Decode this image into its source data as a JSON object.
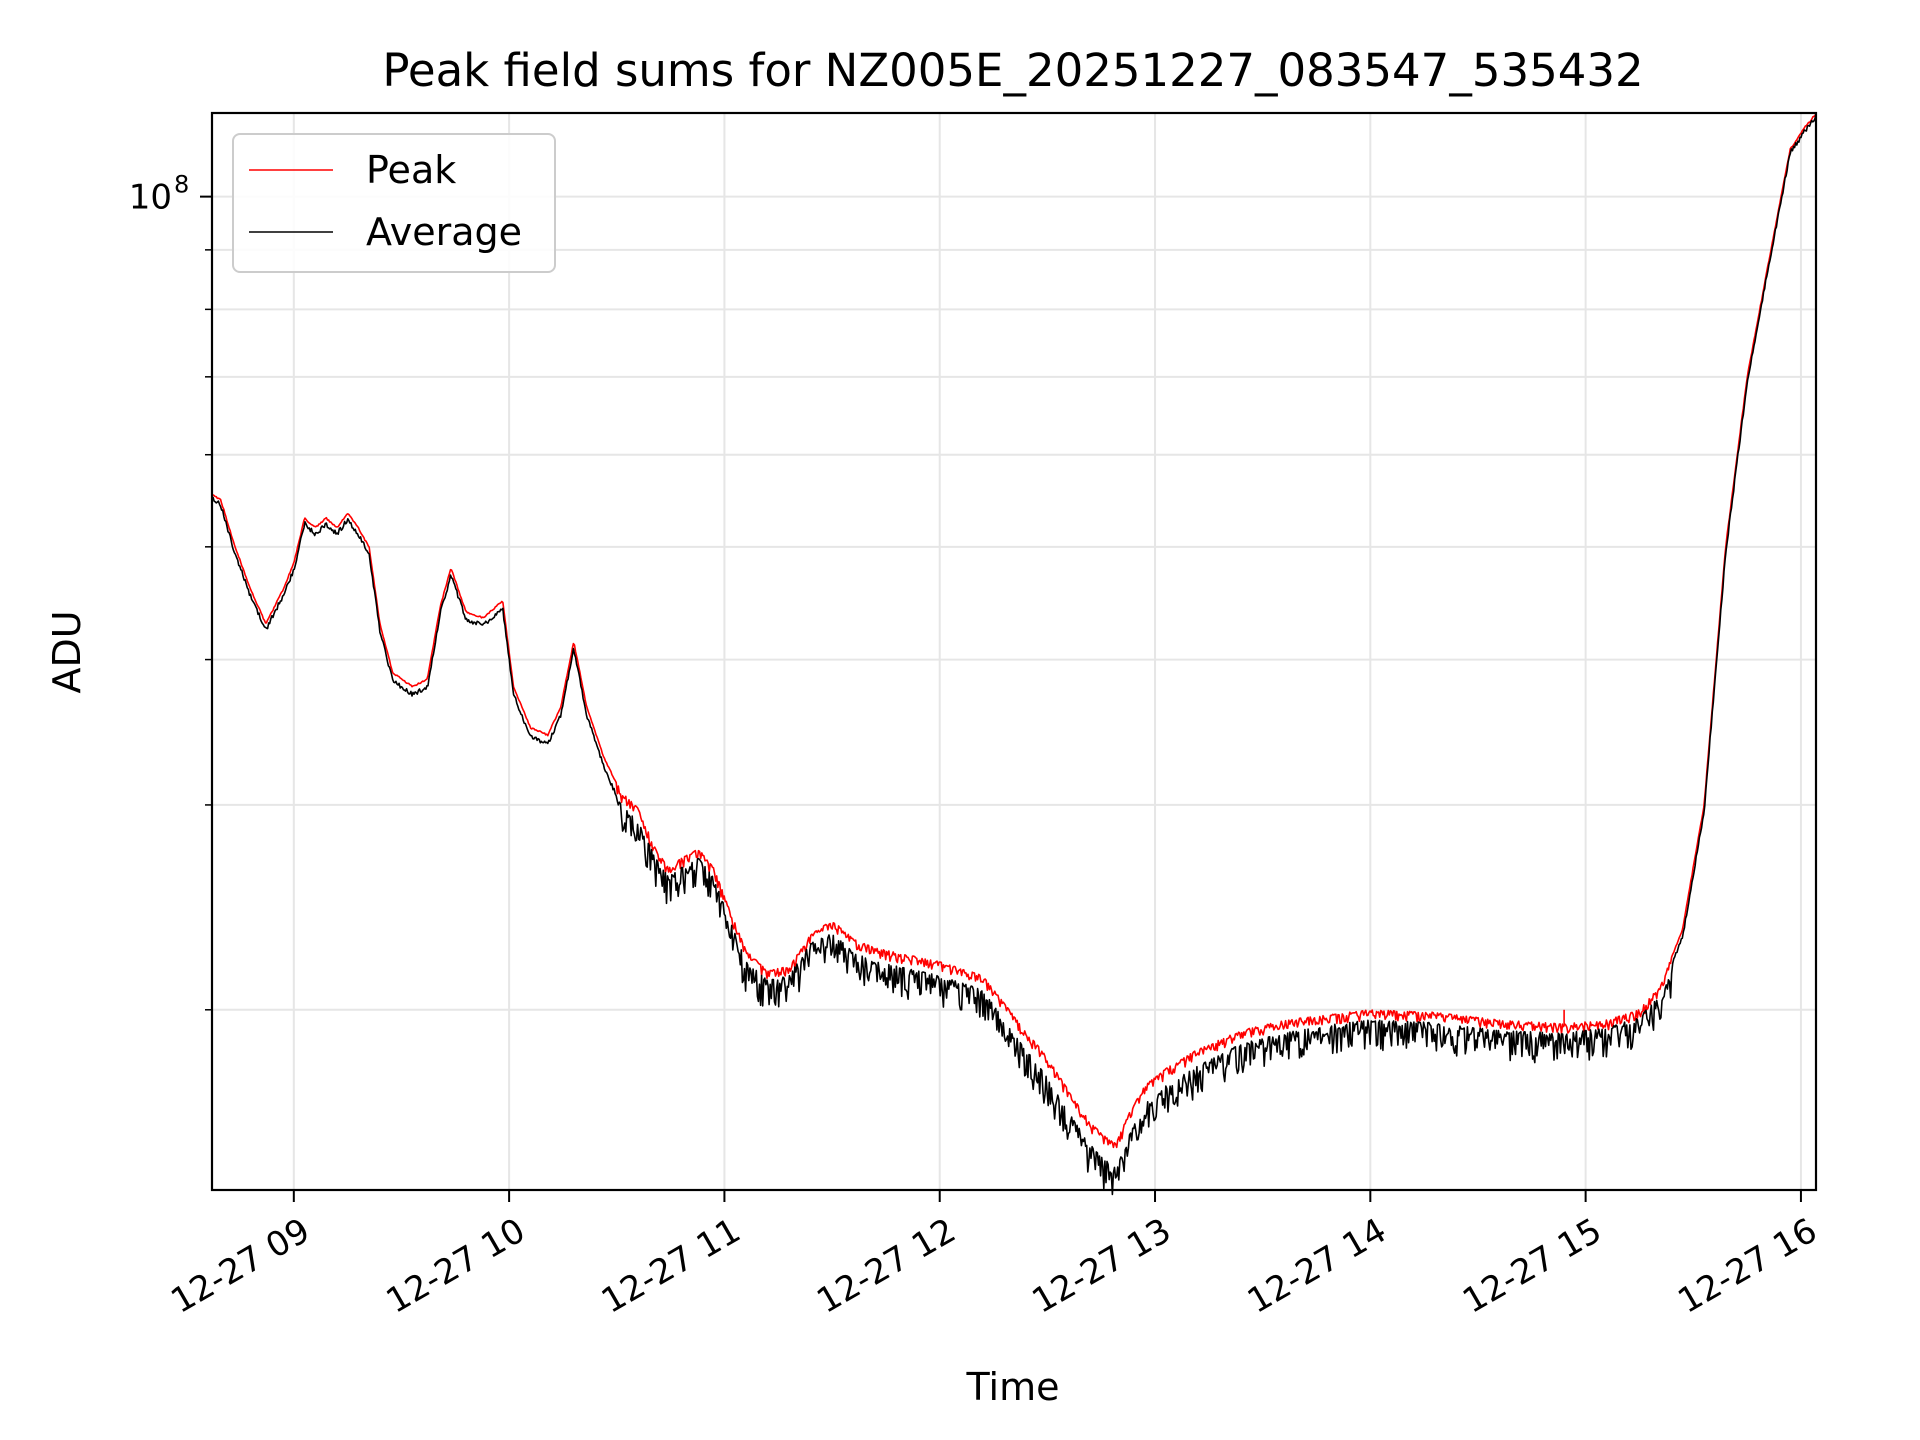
{
  "chart_data": {
    "type": "line",
    "title": "Peak field sums for NZ005E_20251227_083547_535432",
    "xlabel": "Time",
    "ylabel": "ADU",
    "x_ticks": [
      "12-27 09",
      "12-27 10",
      "12-27 11",
      "12-27 12",
      "12-27 13",
      "12-27 14",
      "12-27 15",
      "12-27 16"
    ],
    "x_range_hours": [
      8.62,
      16.07
    ],
    "y_scale": "log",
    "ylim": [
      14000000,
      118000000
    ],
    "y_major_ticks": [
      {
        "value": 100000000,
        "base": "10",
        "exponent": "8"
      }
    ],
    "y_minor_ticks": [
      20000000,
      30000000,
      40000000,
      50000000,
      60000000,
      70000000,
      80000000,
      90000000
    ],
    "grid": true,
    "legend": {
      "position": "upper left",
      "entries": [
        "Peak",
        "Average"
      ]
    },
    "series": [
      {
        "name": "Peak",
        "color": "#ff0000",
        "noise": 0.02,
        "spikes": [
          {
            "x": 14.9,
            "y": 20000000
          }
        ],
        "keypoints": [
          [
            8.62,
            55500000
          ],
          [
            8.66,
            55000000
          ],
          [
            8.72,
            50500000
          ],
          [
            8.8,
            46000000
          ],
          [
            8.87,
            43000000
          ],
          [
            8.95,
            46000000
          ],
          [
            9.0,
            48500000
          ],
          [
            9.05,
            53000000
          ],
          [
            9.1,
            52000000
          ],
          [
            9.15,
            53000000
          ],
          [
            9.2,
            52000000
          ],
          [
            9.25,
            53500000
          ],
          [
            9.3,
            52000000
          ],
          [
            9.35,
            50000000
          ],
          [
            9.4,
            43000000
          ],
          [
            9.46,
            39000000
          ],
          [
            9.55,
            38000000
          ],
          [
            9.62,
            38500000
          ],
          [
            9.68,
            44500000
          ],
          [
            9.73,
            48000000
          ],
          [
            9.8,
            44000000
          ],
          [
            9.88,
            43500000
          ],
          [
            9.97,
            45000000
          ],
          [
            10.02,
            38000000
          ],
          [
            10.1,
            35000000
          ],
          [
            10.18,
            34500000
          ],
          [
            10.24,
            36500000
          ],
          [
            10.3,
            41500000
          ],
          [
            10.36,
            36500000
          ],
          [
            10.44,
            33000000
          ],
          [
            10.52,
            30800000
          ],
          [
            10.6,
            29800000
          ],
          [
            10.68,
            27500000
          ],
          [
            10.74,
            26500000
          ],
          [
            10.8,
            27000000
          ],
          [
            10.88,
            27500000
          ],
          [
            10.95,
            26500000
          ],
          [
            11.02,
            24500000
          ],
          [
            11.1,
            22500000
          ],
          [
            11.2,
            21600000
          ],
          [
            11.3,
            21800000
          ],
          [
            11.4,
            23200000
          ],
          [
            11.5,
            23900000
          ],
          [
            11.6,
            23000000
          ],
          [
            11.7,
            22600000
          ],
          [
            11.85,
            22300000
          ],
          [
            12.0,
            22000000
          ],
          [
            12.2,
            21400000
          ],
          [
            12.35,
            19700000
          ],
          [
            12.5,
            18200000
          ],
          [
            12.62,
            16800000
          ],
          [
            12.7,
            16000000
          ],
          [
            12.78,
            15500000
          ],
          [
            12.82,
            15400000
          ],
          [
            12.88,
            16300000
          ],
          [
            12.95,
            17200000
          ],
          [
            13.05,
            17800000
          ],
          [
            13.2,
            18500000
          ],
          [
            13.4,
            19200000
          ],
          [
            13.6,
            19600000
          ],
          [
            13.8,
            19800000
          ],
          [
            14.0,
            20000000
          ],
          [
            14.3,
            19900000
          ],
          [
            14.6,
            19600000
          ],
          [
            14.9,
            19450000
          ],
          [
            15.1,
            19600000
          ],
          [
            15.25,
            20000000
          ],
          [
            15.35,
            21000000
          ],
          [
            15.45,
            23500000
          ],
          [
            15.55,
            30000000
          ],
          [
            15.65,
            50000000
          ],
          [
            15.75,
            70000000
          ],
          [
            15.85,
            88000000
          ],
          [
            15.95,
            110000000
          ],
          [
            16.02,
            115000000
          ],
          [
            16.07,
            118000000
          ]
        ]
      },
      {
        "name": "Average",
        "color": "#000000",
        "noise": 0.06,
        "keypoints": [
          [
            8.62,
            55300000
          ],
          [
            8.66,
            54600000
          ],
          [
            8.72,
            50000000
          ],
          [
            8.8,
            45500000
          ],
          [
            8.87,
            42600000
          ],
          [
            8.95,
            45600000
          ],
          [
            9.0,
            48000000
          ],
          [
            9.05,
            52600000
          ],
          [
            9.1,
            51500000
          ],
          [
            9.15,
            52500000
          ],
          [
            9.2,
            51500000
          ],
          [
            9.25,
            53000000
          ],
          [
            9.3,
            51500000
          ],
          [
            9.35,
            49500000
          ],
          [
            9.4,
            42500000
          ],
          [
            9.46,
            38500000
          ],
          [
            9.55,
            37500000
          ],
          [
            9.62,
            38000000
          ],
          [
            9.68,
            44000000
          ],
          [
            9.73,
            47500000
          ],
          [
            9.8,
            43500000
          ],
          [
            9.88,
            43000000
          ],
          [
            9.97,
            44500000
          ],
          [
            10.02,
            37500000
          ],
          [
            10.1,
            34500000
          ],
          [
            10.18,
            34000000
          ],
          [
            10.24,
            36000000
          ],
          [
            10.3,
            41000000
          ],
          [
            10.36,
            36000000
          ],
          [
            10.44,
            32500000
          ],
          [
            10.52,
            30000000
          ],
          [
            10.6,
            29000000
          ],
          [
            10.68,
            27000000
          ],
          [
            10.74,
            26000000
          ],
          [
            10.8,
            26500000
          ],
          [
            10.88,
            27000000
          ],
          [
            10.95,
            26000000
          ],
          [
            11.02,
            24000000
          ],
          [
            11.1,
            22000000
          ],
          [
            11.2,
            21200000
          ],
          [
            11.3,
            21400000
          ],
          [
            11.4,
            22800000
          ],
          [
            11.5,
            23300000
          ],
          [
            11.6,
            22400000
          ],
          [
            11.7,
            22000000
          ],
          [
            11.85,
            21700000
          ],
          [
            12.0,
            21400000
          ],
          [
            12.2,
            20800000
          ],
          [
            12.35,
            19000000
          ],
          [
            12.5,
            17500000
          ],
          [
            12.62,
            16100000
          ],
          [
            12.7,
            15300000
          ],
          [
            12.78,
            14800000
          ],
          [
            12.82,
            14600000
          ],
          [
            12.88,
            15600000
          ],
          [
            12.95,
            16600000
          ],
          [
            13.05,
            17200000
          ],
          [
            13.2,
            17900000
          ],
          [
            13.4,
            18700000
          ],
          [
            13.6,
            19100000
          ],
          [
            13.8,
            19400000
          ],
          [
            14.0,
            19600000
          ],
          [
            14.3,
            19500000
          ],
          [
            14.6,
            19200000
          ],
          [
            14.9,
            19100000
          ],
          [
            15.1,
            19300000
          ],
          [
            15.25,
            19700000
          ],
          [
            15.35,
            20700000
          ],
          [
            15.45,
            23200000
          ],
          [
            15.55,
            29700000
          ],
          [
            15.65,
            49500000
          ],
          [
            15.75,
            69500000
          ],
          [
            15.85,
            87500000
          ],
          [
            15.95,
            109500000
          ],
          [
            16.02,
            114500000
          ],
          [
            16.07,
            117800000
          ]
        ]
      }
    ]
  }
}
